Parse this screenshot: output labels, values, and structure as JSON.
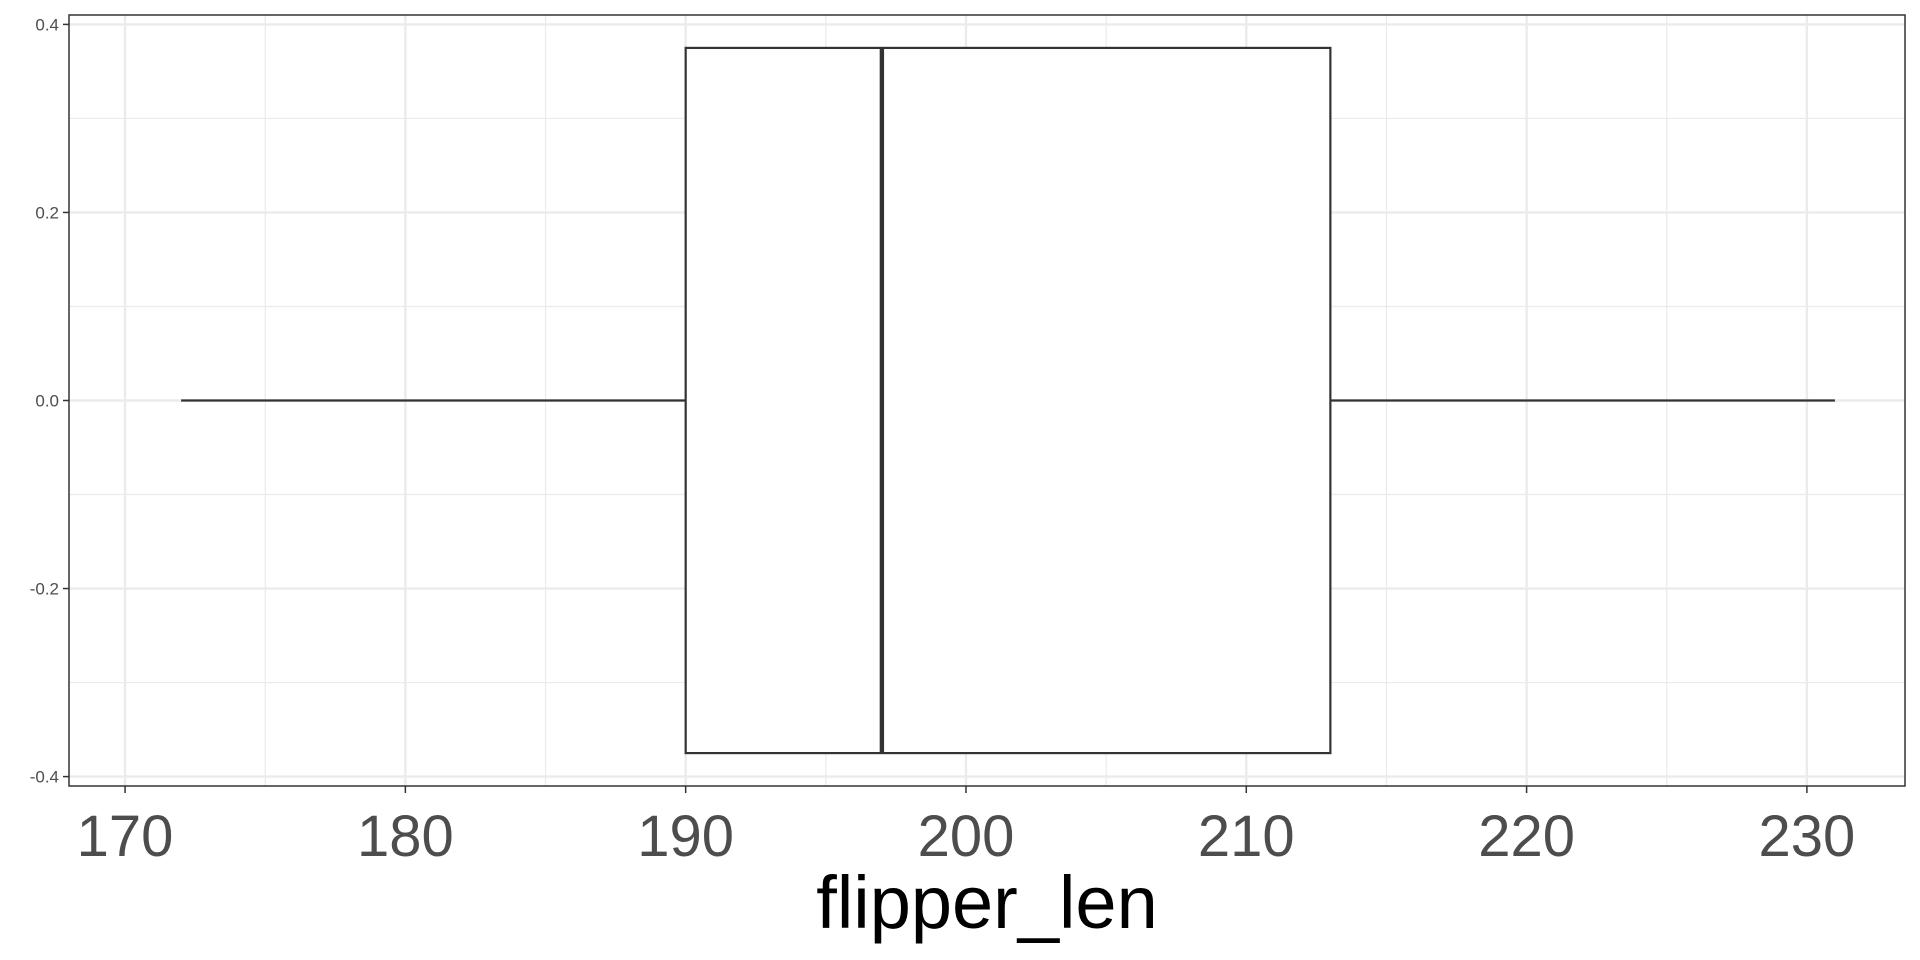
{
  "chart_data": {
    "type": "boxplot",
    "title": "",
    "xlabel": "flipper_len",
    "ylabel": "",
    "xlim": [
      168,
      233.5
    ],
    "ylim": [
      -0.41,
      0.41
    ],
    "x_ticks": [
      170,
      180,
      190,
      200,
      210,
      220,
      230
    ],
    "x_tick_labels": [
      "170",
      "180",
      "190",
      "200",
      "210",
      "220",
      "230"
    ],
    "y_ticks": [
      -0.4,
      -0.2,
      0.0,
      0.2,
      0.4
    ],
    "y_tick_labels": [
      "-0.4",
      "-0.2",
      "0.0",
      "0.2",
      "0.4"
    ],
    "grid": true,
    "orientation": "horizontal",
    "box": {
      "whisker_low": 172,
      "q1": 190,
      "median": 197,
      "q3": 213,
      "whisker_high": 231,
      "y_center": 0.0,
      "half_width": 0.375
    },
    "colors": {
      "box_line": "#333333",
      "box_fill": "#ffffff",
      "grid": "#ebebeb",
      "panel_border": "#333333"
    }
  }
}
